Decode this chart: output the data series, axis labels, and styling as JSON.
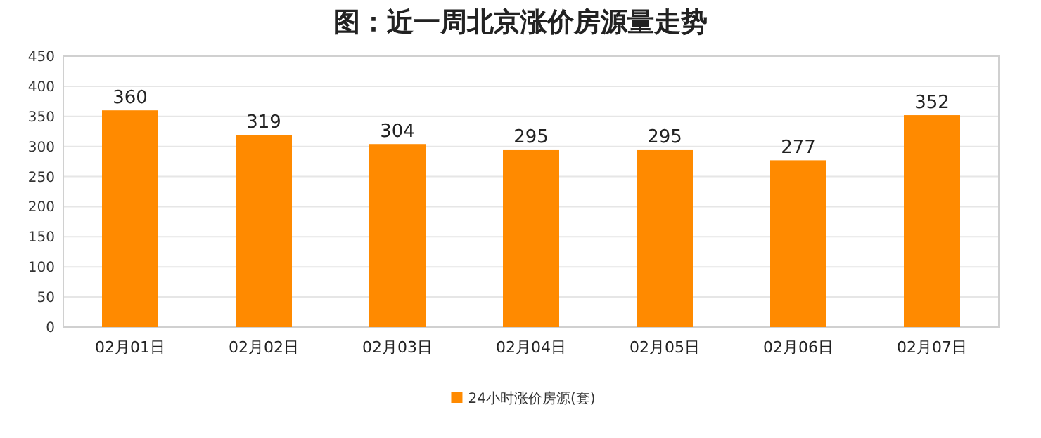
{
  "chart_data": {
    "type": "bar",
    "title": "图：近一周北京涨价房源量走势",
    "categories": [
      "02月01日",
      "02月02日",
      "02月03日",
      "02月04日",
      "02月05日",
      "02月06日",
      "02月07日"
    ],
    "series": [
      {
        "name": "24小时涨价房源(套)",
        "color": "#ff8a00",
        "values": [
          360,
          319,
          304,
          295,
          295,
          277,
          352
        ]
      }
    ],
    "ylim": [
      0,
      450
    ],
    "yticks": [
      0,
      50,
      100,
      150,
      200,
      250,
      300,
      350,
      400,
      450
    ],
    "grid": "y",
    "legend": "bottom",
    "data_labels": true
  }
}
